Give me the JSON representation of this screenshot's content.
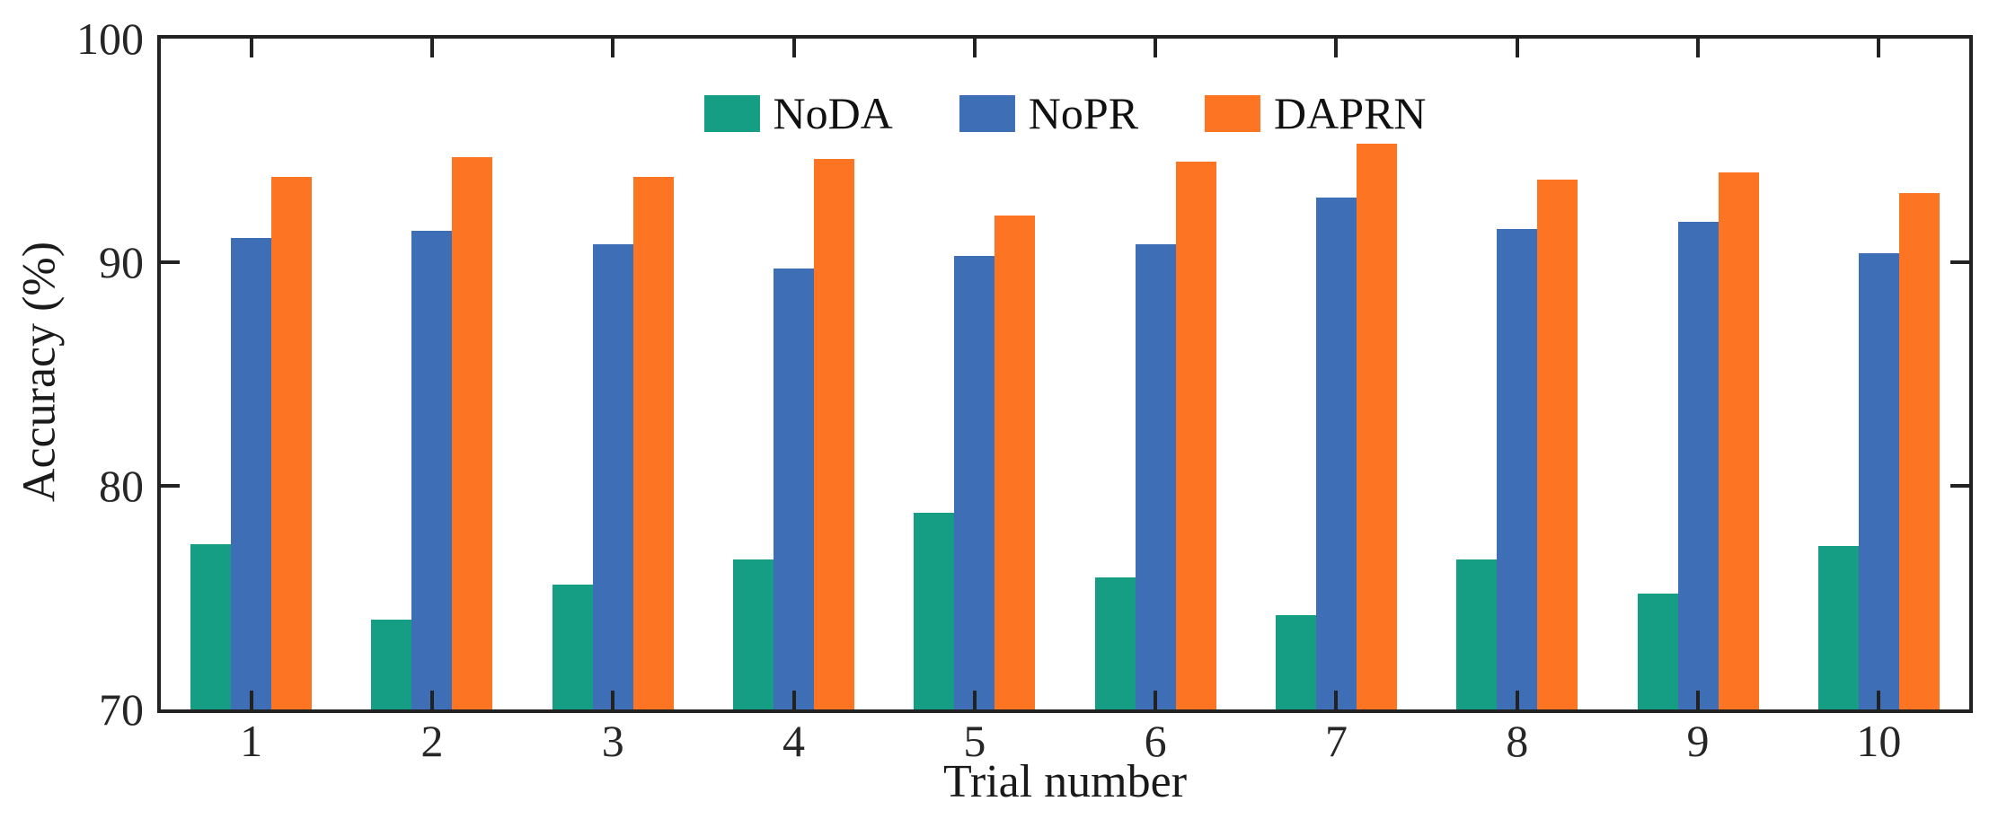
{
  "chart_data": {
    "type": "bar",
    "title": "",
    "xlabel": "Trial number",
    "ylabel": "Accuracy (%)",
    "categories": [
      "1",
      "2",
      "3",
      "4",
      "5",
      "6",
      "7",
      "8",
      "9",
      "10"
    ],
    "series": [
      {
        "name": "NoDA",
        "color": "#169E85",
        "values": [
          77.4,
          74.0,
          75.6,
          76.7,
          78.8,
          75.9,
          74.2,
          76.7,
          75.2,
          77.3
        ]
      },
      {
        "name": "NoPR",
        "color": "#3D6EB6",
        "values": [
          91.1,
          91.4,
          90.8,
          89.7,
          90.3,
          90.8,
          92.9,
          91.5,
          91.8,
          90.4
        ]
      },
      {
        "name": "DAPRN",
        "color": "#FD7422",
        "values": [
          93.8,
          94.7,
          93.8,
          94.6,
          92.1,
          94.5,
          95.3,
          93.7,
          94.0,
          93.1
        ]
      }
    ],
    "ylim": [
      70,
      100
    ],
    "yticks": [
      70,
      80,
      90,
      100
    ],
    "grid": false,
    "legend_position": "top-center-inside",
    "axis_color": "#222222",
    "background_color": "#ffffff"
  }
}
